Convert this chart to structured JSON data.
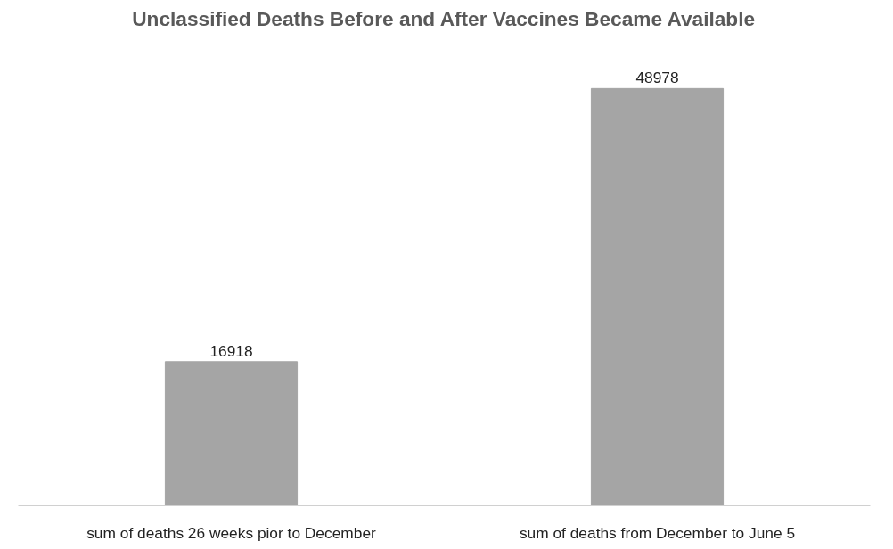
{
  "chart_data": {
    "type": "bar",
    "title": "Unclassified Deaths Before and After Vaccines Became Available",
    "categories": [
      "sum of deaths 26 weeks pior to December",
      "sum of deaths from December to June 5"
    ],
    "values": [
      16918,
      48978
    ],
    "color": "#a5a5a5",
    "data_labels": true
  }
}
